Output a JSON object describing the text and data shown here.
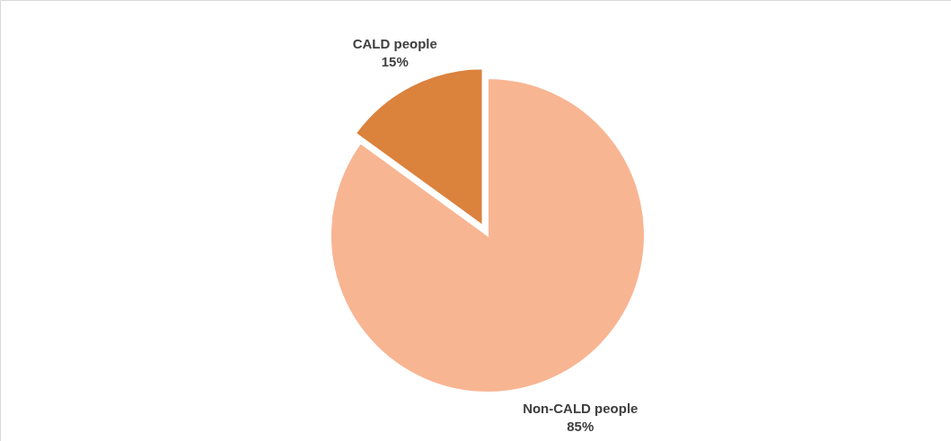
{
  "chart_data": {
    "type": "pie",
    "categories": [
      "Non-CALD people",
      "CALD people"
    ],
    "values": [
      85,
      15
    ],
    "colors": [
      "#f8b592",
      "#db823d"
    ],
    "value_labels": [
      "85%",
      "15%"
    ]
  }
}
